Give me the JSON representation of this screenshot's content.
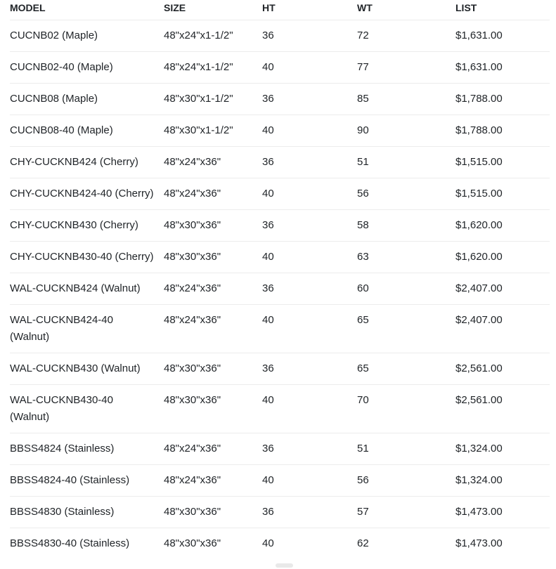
{
  "table": {
    "columns": [
      "MODEL",
      "SIZE",
      "HT",
      "WT",
      "LIST"
    ],
    "column_keys": [
      "model",
      "size",
      "ht",
      "wt",
      "list"
    ],
    "rows": [
      [
        "CUCNB02 (Maple)",
        "48\"x24\"x1-1/2\"",
        "36",
        "72",
        "$1,631.00"
      ],
      [
        "CUCNB02-40 (Maple)",
        "48\"x24\"x1-1/2\"",
        "40",
        "77",
        "$1,631.00"
      ],
      [
        "CUCNB08 (Maple)",
        "48\"x30\"x1-1/2\"",
        "36",
        "85",
        "$1,788.00"
      ],
      [
        "CUCNB08-40 (Maple)",
        "48\"x30\"x1-1/2\"",
        "40",
        "90",
        "$1,788.00"
      ],
      [
        "CHY-CUCKNB424 (Cherry)",
        "48\"x24\"x36\"",
        "36",
        "51",
        "$1,515.00"
      ],
      [
        "CHY-CUCKNB424-40 (Cherry)",
        "48\"x24\"x36\"",
        "40",
        "56",
        "$1,515.00"
      ],
      [
        "CHY-CUCKNB430 (Cherry)",
        "48\"x30\"x36\"",
        "36",
        "58",
        "$1,620.00"
      ],
      [
        "CHY-CUCKNB430-40 (Cherry)",
        "48\"x30\"x36\"",
        "40",
        "63",
        "$1,620.00"
      ],
      [
        "WAL-CUCKNB424 (Walnut)",
        "48\"x24\"x36\"",
        "36",
        "60",
        "$2,407.00"
      ],
      [
        "WAL-CUCKNB424-40 (Walnut)",
        "48\"x24\"x36\"",
        "40",
        "65",
        "$2,407.00"
      ],
      [
        "WAL-CUCKNB430 (Walnut)",
        "48\"x30\"x36\"",
        "36",
        "65",
        "$2,561.00"
      ],
      [
        "WAL-CUCKNB430-40 (Walnut)",
        "48\"x30\"x36\"",
        "40",
        "70",
        "$2,561.00"
      ],
      [
        "BBSS4824 (Stainless)",
        "48\"x24\"x36\"",
        "36",
        "51",
        "$1,324.00"
      ],
      [
        "BBSS4824-40 (Stainless)",
        "48\"x24\"x36\"",
        "40",
        "56",
        "$1,324.00"
      ],
      [
        "BBSS4830 (Stainless)",
        "48\"x30\"x36\"",
        "36",
        "57",
        "$1,473.00"
      ],
      [
        "BBSS4830-40 (Stainless)",
        "48\"x30\"x36\"",
        "40",
        "62",
        "$1,473.00"
      ]
    ]
  },
  "colors": {
    "text": "#212529",
    "border": "#ececec",
    "background": "#ffffff",
    "bottom_element": "#e9e9e9"
  }
}
